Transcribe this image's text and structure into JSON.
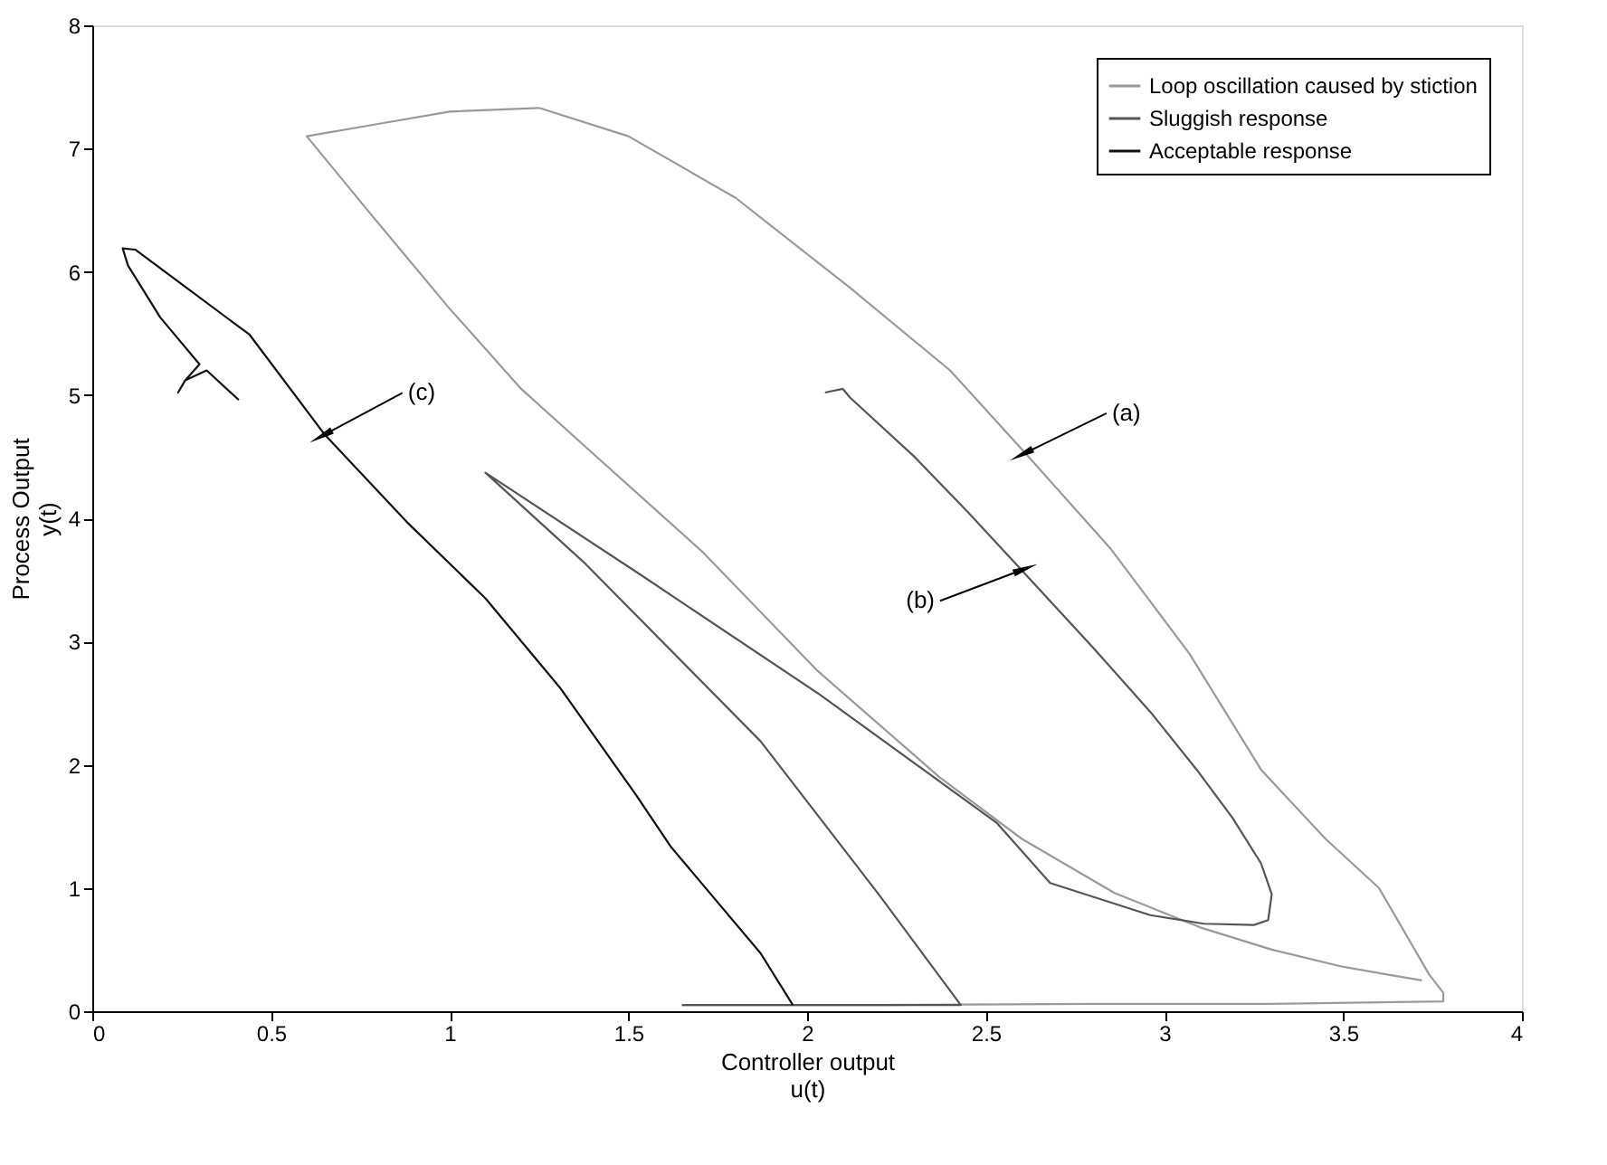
{
  "chart_data": {
    "type": "line",
    "xlabel": "Controller output\nu(t)",
    "ylabel": "Process Output\ny(t)",
    "xlim": [
      0,
      4
    ],
    "xticks": [
      0,
      0.5,
      1,
      1.5,
      2,
      2.5,
      3,
      3.5,
      4
    ],
    "ylim": [
      0,
      8
    ],
    "yticks": [
      0,
      1,
      2,
      3,
      4,
      5,
      6,
      7,
      8
    ],
    "grid": false,
    "legend": "top right",
    "marker": "none",
    "line_style": "solid",
    "series": [
      {
        "name": "Loop oscillation caused by stiction",
        "color": "#9a9a9a",
        "x": [
          1.65,
          2.2,
          2.8,
          3.3,
          3.78,
          3.78,
          3.74,
          3.6,
          3.45,
          3.27,
          3.07,
          2.85,
          2.61,
          2.4,
          2.12,
          1.8,
          1.5,
          1.25,
          1.0,
          0.8,
          0.6,
          0.77,
          1.0,
          1.2,
          1.38,
          1.71,
          2.03,
          2.37,
          2.6,
          2.86,
          3.1,
          3.3,
          3.5,
          3.72
        ],
        "values": [
          0.05,
          0.05,
          0.06,
          0.06,
          0.08,
          0.15,
          0.3,
          1.0,
          1.4,
          1.96,
          2.9,
          3.75,
          4.53,
          5.2,
          5.87,
          6.6,
          7.1,
          7.33,
          7.3,
          7.2,
          7.1,
          6.5,
          5.7,
          5.05,
          4.58,
          3.72,
          2.76,
          1.9,
          1.4,
          0.96,
          0.68,
          0.5,
          0.36,
          0.25
        ]
      },
      {
        "name": "Sluggish response",
        "color": "#555555",
        "x": [
          2.05,
          2.1,
          2.12,
          2.3,
          2.45,
          2.6,
          2.8,
          2.96,
          3.09,
          3.19,
          3.27,
          3.3,
          3.29,
          3.25,
          3.11,
          2.96,
          2.68,
          2.53,
          2.03,
          1.54,
          1.1,
          1.38,
          1.87,
          2.2,
          2.43,
          1.65
        ],
        "values": [
          5.02,
          5.05,
          4.98,
          4.5,
          4.05,
          3.58,
          2.95,
          2.43,
          1.96,
          1.57,
          1.2,
          0.95,
          0.74,
          0.7,
          0.71,
          0.78,
          1.04,
          1.53,
          2.58,
          3.53,
          4.37,
          3.63,
          2.19,
          0.95,
          0.05,
          0.05
        ]
      },
      {
        "name": "Acceptable response",
        "color": "#111111",
        "x": [
          0.41,
          0.32,
          0.26,
          0.24,
          0.26,
          0.3,
          0.19,
          0.1,
          0.085,
          0.12,
          0.25,
          0.44,
          0.65,
          0.88,
          1.1,
          1.31,
          1.52,
          1.62,
          1.87,
          1.96
        ],
        "values": [
          4.96,
          5.2,
          5.12,
          5.02,
          5.12,
          5.25,
          5.63,
          6.05,
          6.19,
          6.18,
          5.9,
          5.49,
          4.68,
          3.97,
          3.35,
          2.62,
          1.76,
          1.33,
          0.47,
          0.05
        ]
      }
    ],
    "annotations": [
      {
        "text": "(a)",
        "x": 2.61,
        "y": 4.53
      },
      {
        "text": "(b)",
        "x": 2.6,
        "y": 3.58
      },
      {
        "text": "(c)",
        "x": 0.65,
        "y": 4.68
      }
    ]
  }
}
